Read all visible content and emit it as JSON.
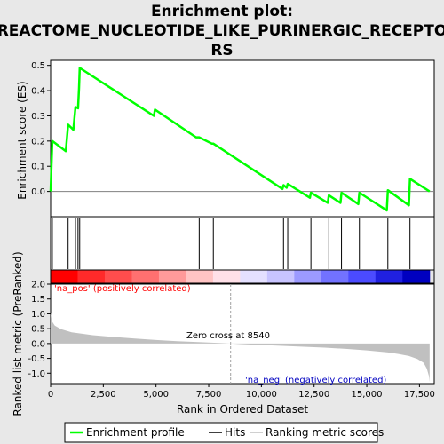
{
  "chart_data": {
    "type": "line",
    "title_lines": [
      "Enrichment plot:",
      "REACTOME_NUCLEOTIDE_LIKE_PURINERGIC_RECEPTO",
      "RS"
    ],
    "es_panel": {
      "ylabel": "Enrichment score (ES)",
      "ylim": [
        -0.1,
        0.52
      ],
      "yticks": [
        "0.0",
        "0.1",
        "0.2",
        "0.3",
        "0.4",
        "0.5"
      ],
      "ytick_values": [
        0.0,
        0.1,
        0.2,
        0.3,
        0.4,
        0.5
      ],
      "series": [
        {
          "name": "Enrichment profile",
          "color": "#00ff00",
          "x": [
            0,
            80,
            720,
            830,
            1080,
            1180,
            1300,
            1350,
            1380,
            4900,
            4950,
            6900,
            7050,
            7650,
            7720,
            11000,
            11050,
            11200,
            11250,
            12300,
            12350,
            13150,
            13200,
            13750,
            13800,
            14600,
            14650,
            15950,
            16000,
            17000,
            17050,
            17980
          ],
          "y": [
            0.0,
            0.2,
            0.16,
            0.265,
            0.245,
            0.335,
            0.33,
            0.41,
            0.49,
            0.3,
            0.325,
            0.215,
            0.215,
            0.19,
            0.19,
            0.01,
            0.025,
            0.015,
            0.03,
            -0.025,
            -0.005,
            -0.045,
            -0.015,
            -0.045,
            -0.005,
            -0.05,
            -0.005,
            -0.075,
            0.005,
            -0.055,
            0.05,
            0.0
          ]
        }
      ]
    },
    "hits_panel": {
      "legend_name": "Hits",
      "hit_positions": [
        80,
        830,
        1180,
        1300,
        1380,
        4950,
        7050,
        7720,
        11050,
        11250,
        12350,
        13200,
        13800,
        14650,
        16000,
        17050
      ]
    },
    "color_bar": {
      "segments": [
        "#ff0000",
        "#ff2a2a",
        "#ff4d4d",
        "#ff7070",
        "#ff9a9a",
        "#ffc4c4",
        "#ffe0e8",
        "#e4e0ff",
        "#c8c4ff",
        "#9c9aff",
        "#7272ff",
        "#4b4bff",
        "#2020e0",
        "#0000c0"
      ]
    },
    "metric_panel": {
      "ylabel": "Ranked list metric (PreRanked)",
      "ylim": [
        -1.35,
        2.0
      ],
      "yticks": [
        "2.0",
        "1.5",
        "1.0",
        "0.5",
        "0.0",
        "-0.5",
        "-1.0"
      ],
      "ytick_values": [
        2.0,
        1.5,
        1.0,
        0.5,
        0.0,
        -0.5,
        -1.0
      ],
      "legend_name": "Ranking metric scores",
      "x": [
        0,
        60,
        200,
        500,
        1000,
        2000,
        3000,
        4000,
        5000,
        6000,
        7000,
        8000,
        8540,
        9000,
        10000,
        11000,
        12000,
        13000,
        14000,
        15000,
        16000,
        16500,
        17000,
        17400,
        17700,
        17850,
        17950,
        17980
      ],
      "y": [
        1.05,
        0.75,
        0.6,
        0.48,
        0.38,
        0.28,
        0.22,
        0.17,
        0.12,
        0.08,
        0.05,
        0.02,
        0.0,
        -0.02,
        -0.05,
        -0.08,
        -0.11,
        -0.14,
        -0.18,
        -0.23,
        -0.3,
        -0.35,
        -0.42,
        -0.52,
        -0.65,
        -0.85,
        -1.1,
        -1.3
      ],
      "zero_cross_label": "Zero cross at 8540",
      "zero_cross": 8540,
      "pos_label": "'na_pos' (positively correlated)",
      "neg_label": "'na_neg' (negatively correlated)"
    },
    "xlabel": "Rank in Ordered Dataset",
    "xlim": [
      0,
      18200
    ],
    "xticks": [
      "0",
      "2,500",
      "5,000",
      "7,500",
      "10,000",
      "12,500",
      "15,000",
      "17,500"
    ],
    "xtick_values": [
      0,
      2500,
      5000,
      7500,
      10000,
      12500,
      15000,
      17500
    ],
    "legend": [
      "Enrichment profile",
      "Hits",
      "Ranking metric scores"
    ],
    "colors": {
      "profile": "#00ff00",
      "hits": "#000000",
      "metric_fill": "#c0c0c0",
      "pos_text": "#ff0000",
      "neg_text": "#0000c0",
      "zero_line": "#a0a0a0"
    }
  }
}
